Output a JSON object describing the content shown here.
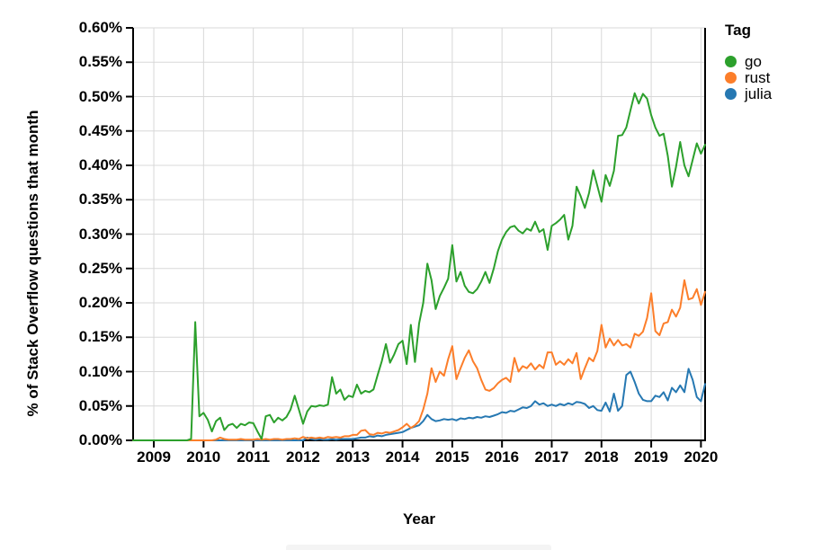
{
  "page": {
    "background": "#ffffff"
  },
  "y_axis": {
    "title": "% of Stack Overflow questions that month",
    "tick_labels": [
      "0.00%",
      "0.05%",
      "0.10%",
      "0.15%",
      "0.20%",
      "0.25%",
      "0.30%",
      "0.35%",
      "0.40%",
      "0.45%",
      "0.50%",
      "0.55%",
      "0.60%"
    ]
  },
  "x_axis": {
    "title": "Year",
    "tick_labels": [
      "2009",
      "2010",
      "2011",
      "2012",
      "2013",
      "2014",
      "2015",
      "2016",
      "2017",
      "2018",
      "2019",
      "2020"
    ]
  },
  "legend": {
    "title": "Tag",
    "items": [
      {
        "label": "go",
        "color": "#2ca02c"
      },
      {
        "label": "rust",
        "color": "#fc7e2a"
      },
      {
        "label": "julia",
        "color": "#2678b2"
      }
    ]
  },
  "colors": {
    "axis": "#000000",
    "grid": "#d8d8d8",
    "text": "#000000"
  },
  "chart_data": {
    "type": "line",
    "title": "",
    "xlabel": "Year",
    "ylabel": "% of Stack Overflow questions that month",
    "x_start_month": "2008-08",
    "x_end_month": "2020-02",
    "frequency": "monthly",
    "ylim": [
      0,
      0.6
    ],
    "y_tick_step": 0.05,
    "y_format": "percent",
    "x_tick_years": [
      2009,
      2010,
      2011,
      2012,
      2013,
      2014,
      2015,
      2016,
      2017,
      2018,
      2019,
      2020
    ],
    "grid": true,
    "legend_position": "right",
    "series": [
      {
        "name": "go",
        "color": "#2ca02c",
        "values": [
          0,
          0,
          0,
          0,
          0,
          0,
          0,
          0,
          0,
          0,
          0,
          0,
          0,
          0,
          0.002,
          0.172,
          0.035,
          0.04,
          0.03,
          0.013,
          0.028,
          0.033,
          0.015,
          0.022,
          0.024,
          0.018,
          0.024,
          0.022,
          0.026,
          0.025,
          0.013,
          0.002,
          0.035,
          0.037,
          0.026,
          0.033,
          0.029,
          0.034,
          0.045,
          0.065,
          0.045,
          0.024,
          0.042,
          0.05,
          0.049,
          0.051,
          0.05,
          0.052,
          0.092,
          0.068,
          0.074,
          0.059,
          0.065,
          0.063,
          0.081,
          0.068,
          0.072,
          0.07,
          0.074,
          0.095,
          0.115,
          0.14,
          0.113,
          0.125,
          0.14,
          0.145,
          0.111,
          0.168,
          0.114,
          0.17,
          0.2,
          0.257,
          0.233,
          0.191,
          0.21,
          0.222,
          0.235,
          0.284,
          0.231,
          0.245,
          0.225,
          0.216,
          0.214,
          0.22,
          0.231,
          0.245,
          0.229,
          0.25,
          0.275,
          0.292,
          0.303,
          0.31,
          0.312,
          0.305,
          0.301,
          0.308,
          0.305,
          0.318,
          0.303,
          0.307,
          0.277,
          0.312,
          0.316,
          0.321,
          0.328,
          0.292,
          0.312,
          0.369,
          0.355,
          0.338,
          0.36,
          0.393,
          0.37,
          0.347,
          0.386,
          0.37,
          0.392,
          0.443,
          0.444,
          0.455,
          0.48,
          0.505,
          0.49,
          0.504,
          0.497,
          0.473,
          0.455,
          0.443,
          0.446,
          0.414,
          0.369,
          0.398,
          0.434,
          0.4,
          0.384,
          0.408,
          0.432,
          0.417,
          0.43
        ]
      },
      {
        "name": "rust",
        "color": "#fc7e2a",
        "values": [
          0,
          0,
          0,
          0,
          0,
          0,
          0,
          0,
          0,
          0,
          0,
          0,
          0,
          0,
          0,
          0,
          0,
          0,
          0,
          0,
          0.001,
          0.004,
          0.002,
          0.001,
          0.001,
          0.001,
          0.002,
          0.001,
          0.001,
          0.001,
          0.002,
          0.001,
          0.002,
          0.001,
          0.002,
          0.002,
          0.001,
          0.002,
          0.002,
          0.003,
          0.002,
          0.005,
          0.003,
          0.004,
          0.003,
          0.004,
          0.003,
          0.005,
          0.004,
          0.005,
          0.004,
          0.006,
          0.006,
          0.008,
          0.008,
          0.014,
          0.015,
          0.009,
          0.008,
          0.011,
          0.01,
          0.012,
          0.011,
          0.013,
          0.015,
          0.019,
          0.024,
          0.018,
          0.022,
          0.028,
          0.045,
          0.068,
          0.105,
          0.085,
          0.1,
          0.094,
          0.118,
          0.137,
          0.089,
          0.105,
          0.12,
          0.131,
          0.115,
          0.105,
          0.088,
          0.074,
          0.072,
          0.076,
          0.083,
          0.088,
          0.091,
          0.085,
          0.12,
          0.1,
          0.108,
          0.105,
          0.112,
          0.103,
          0.11,
          0.105,
          0.128,
          0.128,
          0.11,
          0.115,
          0.11,
          0.118,
          0.112,
          0.127,
          0.089,
          0.105,
          0.12,
          0.115,
          0.13,
          0.168,
          0.135,
          0.148,
          0.138,
          0.146,
          0.138,
          0.14,
          0.135,
          0.155,
          0.152,
          0.158,
          0.178,
          0.214,
          0.159,
          0.153,
          0.17,
          0.172,
          0.19,
          0.18,
          0.193,
          0.233,
          0.205,
          0.207,
          0.22,
          0.197,
          0.216
        ]
      },
      {
        "name": "julia",
        "color": "#2678b2",
        "values": [
          0,
          0,
          0,
          0,
          0,
          0,
          0,
          0,
          0,
          0,
          0,
          0,
          0,
          0,
          0,
          0,
          0,
          0,
          0,
          0,
          0,
          0,
          0,
          0,
          0,
          0,
          0,
          0,
          0,
          0,
          0,
          0,
          0,
          0,
          0,
          0,
          0,
          0,
          0,
          0,
          0,
          0,
          0.004,
          0.002,
          0.001,
          0.002,
          0.001,
          0.001,
          0.002,
          0.001,
          0.002,
          0.002,
          0.002,
          0.002,
          0.003,
          0.004,
          0.004,
          0.006,
          0.005,
          0.007,
          0.006,
          0.008,
          0.009,
          0.01,
          0.011,
          0.012,
          0.015,
          0.018,
          0.02,
          0.022,
          0.028,
          0.037,
          0.031,
          0.028,
          0.029,
          0.031,
          0.03,
          0.031,
          0.029,
          0.032,
          0.031,
          0.033,
          0.032,
          0.034,
          0.033,
          0.035,
          0.034,
          0.036,
          0.038,
          0.041,
          0.04,
          0.043,
          0.042,
          0.045,
          0.048,
          0.047,
          0.05,
          0.057,
          0.052,
          0.054,
          0.05,
          0.052,
          0.05,
          0.053,
          0.051,
          0.054,
          0.052,
          0.056,
          0.055,
          0.053,
          0.047,
          0.05,
          0.044,
          0.043,
          0.055,
          0.042,
          0.068,
          0.043,
          0.05,
          0.095,
          0.1,
          0.085,
          0.068,
          0.059,
          0.057,
          0.057,
          0.065,
          0.063,
          0.07,
          0.058,
          0.0765,
          0.07,
          0.08,
          0.07,
          0.104,
          0.088,
          0.063,
          0.057,
          0.082
        ]
      }
    ]
  }
}
